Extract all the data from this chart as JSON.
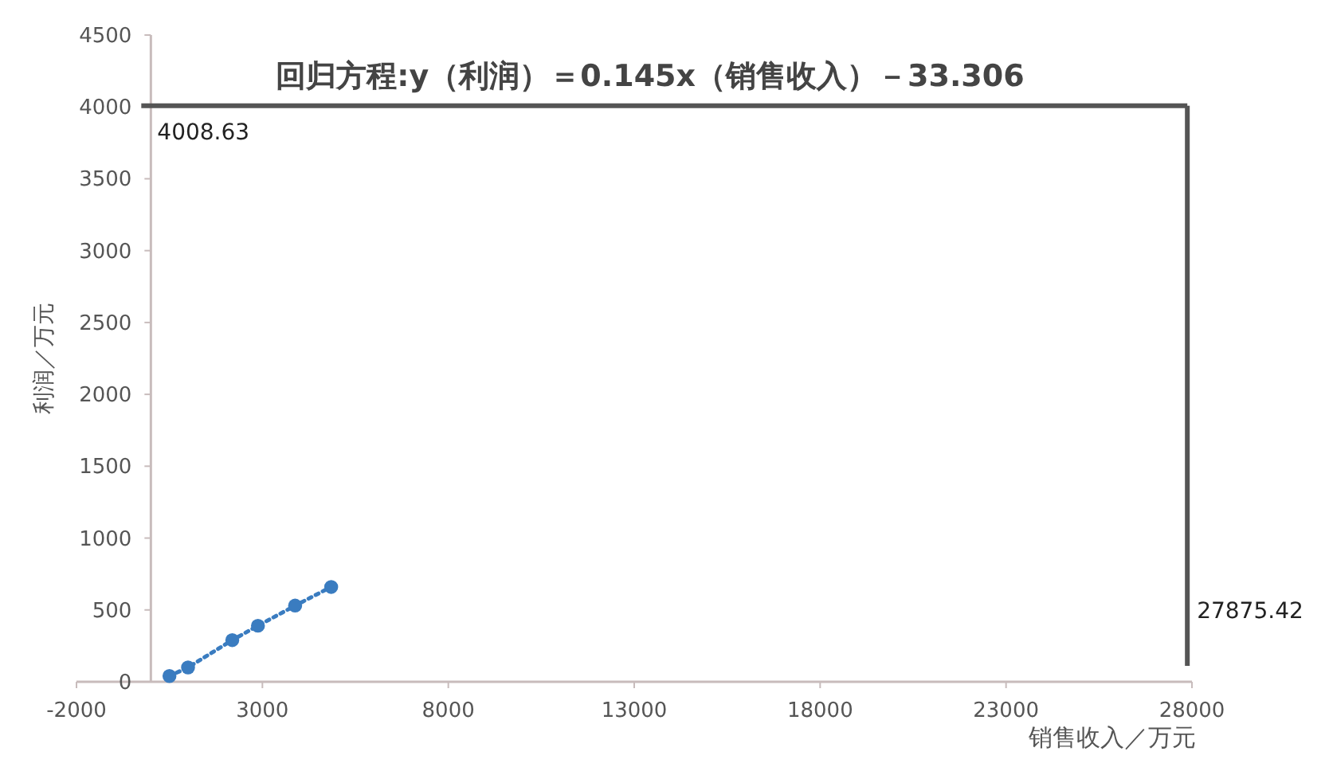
{
  "chart_data": {
    "type": "line",
    "title": "回归方程:y（利润）＝0.145x（销售收入）－33.306",
    "xlabel": "销售收入／万元",
    "ylabel": "利润／万元",
    "x": [
      500,
      1000,
      2190,
      2880,
      3880,
      4850
    ],
    "series": [
      {
        "color": "#3a7cc0",
        "values": [
          40,
          100,
          290,
          390,
          530,
          660
        ]
      }
    ],
    "marker": "circle",
    "line_style": "dotted",
    "grid": false,
    "xlim": [
      -2000,
      28000
    ],
    "xticks": [
      -2000,
      3000,
      8000,
      13000,
      18000,
      23000,
      28000
    ],
    "ylim": [
      0,
      4500
    ],
    "yticks": [
      0,
      500,
      1000,
      1500,
      2000,
      2500,
      3000,
      3500,
      4000,
      4500
    ],
    "ref_lines": [
      {
        "axis": "y",
        "value": 4008.63,
        "label": "4008.63",
        "color": "#555555",
        "line_style": "solid"
      },
      {
        "axis": "x",
        "value": 27875.42,
        "label": "27875.42",
        "color": "#555555",
        "line_style": "solid"
      }
    ]
  }
}
